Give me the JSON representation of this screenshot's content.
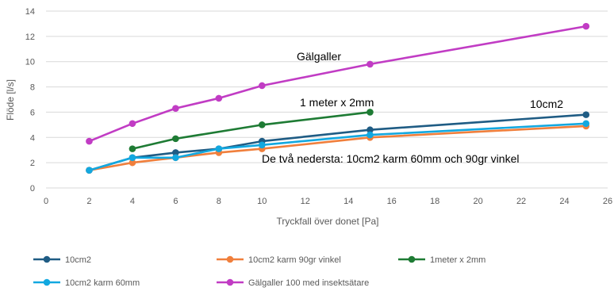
{
  "chart_data": {
    "type": "line",
    "xlabel": "Tryckfall över donet [Pa]",
    "ylabel": "Flöde [l/s]",
    "xlim": [
      0,
      26
    ],
    "ylim": [
      0,
      14
    ],
    "x_ticks": [
      "0",
      "2",
      "4",
      "6",
      "8",
      "10",
      "12",
      "14",
      "16",
      "18",
      "20",
      "22",
      "24",
      "26"
    ],
    "y_ticks": [
      "0",
      "2",
      "4",
      "6",
      "8",
      "10",
      "12",
      "14"
    ],
    "grid": true,
    "legend_position": "bottom",
    "series": [
      {
        "name": "10cm2",
        "color": "#1F5C84",
        "x": [
          2,
          4,
          6,
          8,
          10,
          15,
          25
        ],
        "y": [
          1.4,
          2.4,
          2.8,
          3.1,
          3.7,
          4.6,
          5.8
        ]
      },
      {
        "name": "10cm2 karm 90gr vinkel",
        "color": "#F07F3C",
        "x": [
          2,
          4,
          6,
          8,
          10,
          15,
          25
        ],
        "y": [
          1.4,
          2.0,
          2.4,
          2.8,
          3.1,
          4.0,
          4.9
        ]
      },
      {
        "name": "1meter x 2mm",
        "color": "#1E7B34",
        "x": [
          4,
          6,
          10,
          15
        ],
        "y": [
          3.1,
          3.9,
          5.0,
          6.0
        ]
      },
      {
        "name": "10cm2 karm 60mm",
        "color": "#12A8E0",
        "x": [
          2,
          4,
          6,
          8,
          10,
          15,
          25
        ],
        "y": [
          1.4,
          2.4,
          2.4,
          3.1,
          3.4,
          4.2,
          5.1
        ]
      },
      {
        "name": "Gälgaller 100 med insektsätare",
        "color": "#C13CC4",
        "x": [
          2,
          4,
          6,
          8,
          10,
          15,
          25
        ],
        "y": [
          3.7,
          5.1,
          6.3,
          7.1,
          8.1,
          9.8,
          12.8
        ]
      }
    ],
    "annotations": [
      {
        "text": "Gälgaller"
      },
      {
        "text": "1 meter x 2mm"
      },
      {
        "text": "10cm2"
      },
      {
        "text": "De två nedersta: 10cm2 karm 60mm och 90gr vinkel"
      }
    ]
  }
}
